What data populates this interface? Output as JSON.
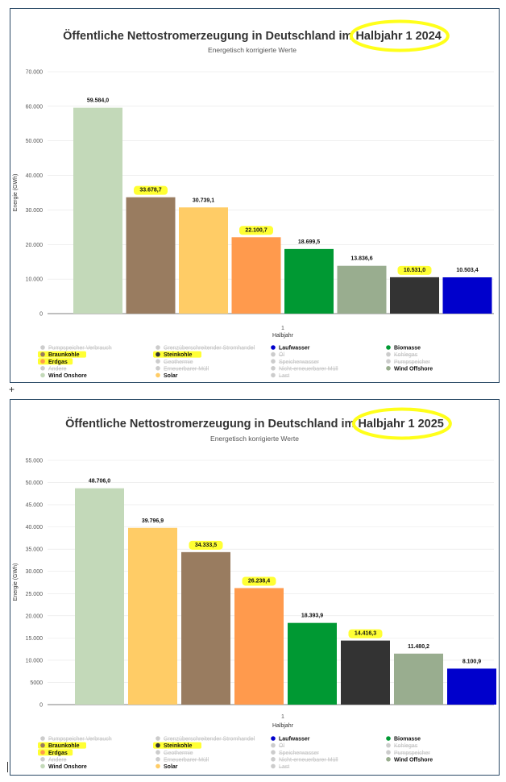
{
  "chart_data": [
    {
      "type": "bar",
      "title": "Öffentliche Nettostromerzeugung in Deutschland im Halbjahr 1 2024",
      "subtitle": "Energetisch korrigierte Werte",
      "ylabel": "Energie (GWh)",
      "xlabel": "Halbjahr",
      "x_category": "1",
      "ylim": [
        0,
        70000
      ],
      "yticks": [
        0,
        10000,
        20000,
        30000,
        40000,
        50000,
        60000,
        70000
      ],
      "ytick_labels": [
        "0",
        "10.000",
        "20.000",
        "30.000",
        "40.000",
        "50.000",
        "60.000",
        "70.000"
      ],
      "grid": true,
      "series": [
        {
          "name": "Wind Onshore",
          "value": 59584.0,
          "label": "59.584,0",
          "color": "#c3d9b9",
          "highlight": false
        },
        {
          "name": "Braunkohle",
          "value": 33678.7,
          "label": "33.678,7",
          "color": "#997c60",
          "highlight": true
        },
        {
          "name": "Solar",
          "value": 30739.1,
          "label": "30.739,1",
          "color": "#ffcc66",
          "highlight": false
        },
        {
          "name": "Erdgas",
          "value": 22100.7,
          "label": "22.100,7",
          "color": "#ff9a4d",
          "highlight": true
        },
        {
          "name": "Biomasse",
          "value": 18699.5,
          "label": "18.699,5",
          "color": "#009933",
          "highlight": false
        },
        {
          "name": "Wind Offshore",
          "value": 13836.6,
          "label": "13.836,6",
          "color": "#99ad8f",
          "highlight": false
        },
        {
          "name": "Steinkohle",
          "value": 10531.0,
          "label": "10.531,0",
          "color": "#333333",
          "highlight": true
        },
        {
          "name": "Laufwasser",
          "value": 10503.4,
          "label": "10.503,4",
          "color": "#0000cc",
          "highlight": false
        }
      ]
    },
    {
      "type": "bar",
      "title": "Öffentliche Nettostromerzeugung in Deutschland im Halbjahr 1 2025",
      "subtitle": "Energetisch korrigierte Werte",
      "ylabel": "Energie (GWh)",
      "xlabel": "Halbjahr",
      "x_category": "1",
      "ylim": [
        0,
        55000
      ],
      "yticks": [
        0,
        5000,
        10000,
        15000,
        20000,
        25000,
        30000,
        35000,
        40000,
        45000,
        50000,
        55000
      ],
      "ytick_labels": [
        "0",
        "5000",
        "10.000",
        "15.000",
        "20.000",
        "25.000",
        "30.000",
        "35.000",
        "40.000",
        "45.000",
        "50.000",
        "55.000"
      ],
      "grid": true,
      "series": [
        {
          "name": "Wind Onshore",
          "value": 48706.0,
          "label": "48.706,0",
          "color": "#c3d9b9",
          "highlight": false
        },
        {
          "name": "Solar",
          "value": 39796.9,
          "label": "39.796,9",
          "color": "#ffcc66",
          "highlight": false
        },
        {
          "name": "Braunkohle",
          "value": 34333.5,
          "label": "34.333,5",
          "color": "#997c60",
          "highlight": true
        },
        {
          "name": "Erdgas",
          "value": 26238.4,
          "label": "26.238,4",
          "color": "#ff9a4d",
          "highlight": true
        },
        {
          "name": "Biomasse",
          "value": 18393.9,
          "label": "18.393,9",
          "color": "#009933",
          "highlight": false
        },
        {
          "name": "Steinkohle",
          "value": 14416.3,
          "label": "14.416,3",
          "color": "#333333",
          "highlight": true
        },
        {
          "name": "Wind Offshore",
          "value": 11480.2,
          "label": "11.480,2",
          "color": "#99ad8f",
          "highlight": false
        },
        {
          "name": "Laufwasser",
          "value": 8100.9,
          "label": "8.100,9",
          "color": "#0000cc",
          "highlight": false
        }
      ]
    }
  ],
  "legend": [
    [
      {
        "name": "Pumpspeicher Verbrauch",
        "color": "#cccccc",
        "active": false,
        "highlight": false
      },
      {
        "name": "Grenzüberschreitender Stromhandel",
        "color": "#cccccc",
        "active": false,
        "highlight": false
      },
      {
        "name": "Laufwasser",
        "color": "#0000cc",
        "active": true,
        "highlight": false
      },
      {
        "name": "Biomasse",
        "color": "#009933",
        "active": true,
        "highlight": false
      }
    ],
    [
      {
        "name": "Braunkohle",
        "color": "#997c60",
        "active": true,
        "highlight": true
      },
      {
        "name": "Steinkohle",
        "color": "#333333",
        "active": true,
        "highlight": true
      },
      {
        "name": "Öl",
        "color": "#cccccc",
        "active": false,
        "highlight": false
      },
      {
        "name": "Kohlegas",
        "color": "#cccccc",
        "active": false,
        "highlight": false
      }
    ],
    [
      {
        "name": "Erdgas",
        "color": "#ff9a4d",
        "active": true,
        "highlight": true
      },
      {
        "name": "Geothermie",
        "color": "#cccccc",
        "active": false,
        "highlight": false
      },
      {
        "name": "Speicherwasser",
        "color": "#cccccc",
        "active": false,
        "highlight": false
      },
      {
        "name": "Pumpspeicher",
        "color": "#cccccc",
        "active": false,
        "highlight": false
      }
    ],
    [
      {
        "name": "Andere",
        "color": "#cccccc",
        "active": false,
        "highlight": false
      },
      {
        "name": "Erneuerbarer Müll",
        "color": "#cccccc",
        "active": false,
        "highlight": false
      },
      {
        "name": "Nicht-erneuerbarer Müll",
        "color": "#cccccc",
        "active": false,
        "highlight": false
      },
      {
        "name": "Wind Offshore",
        "color": "#99ad8f",
        "active": true,
        "highlight": false
      }
    ],
    [
      {
        "name": "Wind Onshore",
        "color": "#c3d9b9",
        "active": true,
        "highlight": false
      },
      {
        "name": "Solar",
        "color": "#ffcc66",
        "active": true,
        "highlight": false
      },
      {
        "name": "Last",
        "color": "#cccccc",
        "active": false,
        "highlight": false
      }
    ]
  ],
  "separator": "+"
}
